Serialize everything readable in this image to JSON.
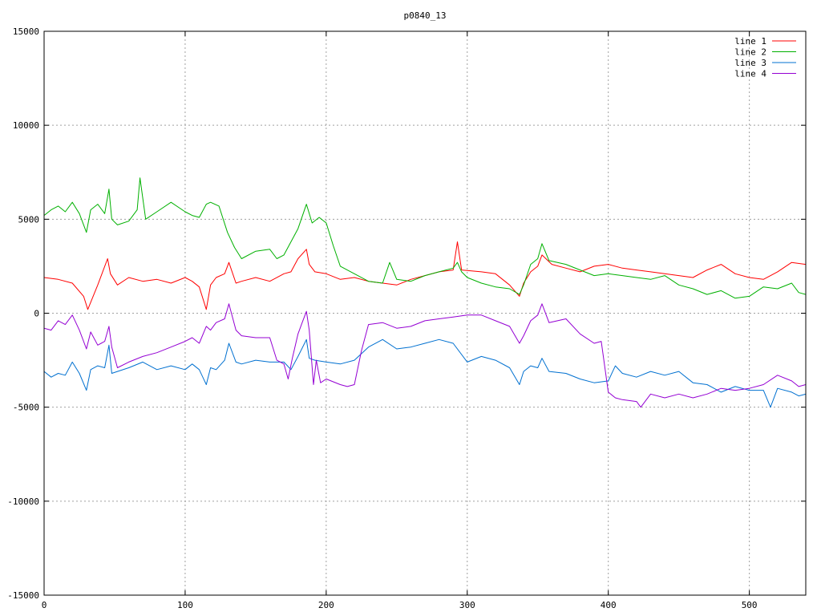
{
  "chart_data": {
    "type": "line",
    "title": "p0840_13",
    "xlabel": "",
    "ylabel": "",
    "xlim": [
      0,
      540
    ],
    "ylim": [
      -15000,
      15000
    ],
    "xticks": [
      0,
      100,
      200,
      300,
      400,
      500
    ],
    "yticks": [
      -15000,
      -10000,
      -5000,
      0,
      5000,
      10000,
      15000
    ],
    "grid": true,
    "legend": "top-right",
    "series": [
      {
        "name": "line 1",
        "color": "#ff0000",
        "x": [
          0,
          10,
          20,
          28,
          31,
          38,
          45,
          47,
          52,
          60,
          70,
          80,
          90,
          100,
          105,
          110,
          115,
          118,
          122,
          128,
          131,
          136,
          140,
          150,
          160,
          170,
          175,
          180,
          186,
          188,
          192,
          200,
          210,
          220,
          230,
          240,
          250,
          260,
          270,
          280,
          290,
          293,
          296,
          310,
          320,
          330,
          337,
          340,
          345,
          350,
          353,
          360,
          370,
          380,
          390,
          400,
          410,
          420,
          430,
          440,
          450,
          460,
          470,
          480,
          490,
          500,
          510,
          520,
          530,
          540
        ],
        "y": [
          1900,
          1800,
          1600,
          900,
          200,
          1500,
          2900,
          2100,
          1500,
          1900,
          1700,
          1800,
          1600,
          1900,
          1700,
          1400,
          200,
          1500,
          1900,
          2100,
          2700,
          1600,
          1700,
          1900,
          1700,
          2100,
          2200,
          2900,
          3400,
          2600,
          2200,
          2100,
          1800,
          1900,
          1700,
          1600,
          1500,
          1800,
          2000,
          2200,
          2300,
          3800,
          2300,
          2200,
          2100,
          1500,
          900,
          1600,
          2200,
          2500,
          3100,
          2600,
          2400,
          2200,
          2500,
          2600,
          2400,
          2300,
          2200,
          2100,
          2000,
          1900,
          2300,
          2600,
          2100,
          1900,
          1800,
          2200,
          2700,
          2600
        ]
      },
      {
        "name": "line 2",
        "color": "#00b000",
        "x": [
          0,
          5,
          10,
          15,
          20,
          25,
          30,
          33,
          38,
          43,
          46,
          48,
          52,
          60,
          66,
          68,
          72,
          80,
          90,
          100,
          105,
          110,
          115,
          118,
          124,
          130,
          135,
          140,
          150,
          160,
          165,
          170,
          180,
          186,
          190,
          195,
          200,
          205,
          210,
          220,
          230,
          240,
          245,
          250,
          260,
          270,
          280,
          290,
          293,
          296,
          300,
          310,
          320,
          330,
          337,
          340,
          345,
          350,
          353,
          358,
          370,
          380,
          390,
          400,
          410,
          420,
          430,
          440,
          450,
          460,
          470,
          480,
          490,
          500,
          510,
          520,
          530,
          535,
          540
        ],
        "y": [
          5200,
          5500,
          5700,
          5400,
          5900,
          5300,
          4300,
          5500,
          5800,
          5300,
          6600,
          5000,
          4700,
          4900,
          5500,
          7200,
          5000,
          5400,
          5900,
          5400,
          5200,
          5100,
          5800,
          5900,
          5700,
          4300,
          3500,
          2900,
          3300,
          3400,
          2900,
          3100,
          4500,
          5800,
          4800,
          5100,
          4800,
          3600,
          2500,
          2100,
          1700,
          1600,
          2700,
          1800,
          1700,
          2000,
          2200,
          2400,
          2700,
          2200,
          1900,
          1600,
          1400,
          1300,
          1000,
          1500,
          2600,
          2900,
          3700,
          2800,
          2600,
          2300,
          2000,
          2100,
          2000,
          1900,
          1800,
          2000,
          1500,
          1300,
          1000,
          1200,
          800,
          900,
          1400,
          1300,
          1600,
          1100,
          1000
        ]
      },
      {
        "name": "line 3",
        "color": "#0070d0",
        "x": [
          0,
          5,
          10,
          15,
          20,
          25,
          30,
          33,
          38,
          43,
          46,
          48,
          52,
          60,
          70,
          80,
          90,
          100,
          105,
          110,
          115,
          118,
          122,
          128,
          131,
          136,
          140,
          150,
          160,
          170,
          175,
          180,
          186,
          188,
          192,
          200,
          210,
          220,
          230,
          240,
          250,
          260,
          270,
          280,
          290,
          300,
          310,
          320,
          330,
          337,
          340,
          345,
          350,
          353,
          358,
          370,
          380,
          390,
          400,
          405,
          410,
          420,
          430,
          440,
          450,
          460,
          470,
          480,
          490,
          500,
          510,
          515,
          520,
          530,
          535,
          540
        ],
        "y": [
          -3100,
          -3400,
          -3200,
          -3300,
          -2600,
          -3200,
          -4100,
          -3000,
          -2800,
          -2900,
          -1700,
          -3200,
          -3100,
          -2900,
          -2600,
          -3000,
          -2800,
          -3000,
          -2700,
          -3000,
          -3800,
          -2900,
          -3000,
          -2500,
          -1600,
          -2600,
          -2700,
          -2500,
          -2600,
          -2600,
          -3000,
          -2300,
          -1400,
          -2400,
          -2500,
          -2600,
          -2700,
          -2500,
          -1800,
          -1400,
          -1900,
          -1800,
          -1600,
          -1400,
          -1600,
          -2600,
          -2300,
          -2500,
          -2900,
          -3800,
          -3100,
          -2800,
          -2900,
          -2400,
          -3100,
          -3200,
          -3500,
          -3700,
          -3600,
          -2800,
          -3200,
          -3400,
          -3100,
          -3300,
          -3100,
          -3700,
          -3800,
          -4200,
          -3900,
          -4100,
          -4100,
          -5000,
          -4000,
          -4200,
          -4400,
          -4300
        ]
      },
      {
        "name": "line 4",
        "color": "#9400d3",
        "x": [
          0,
          5,
          10,
          15,
          20,
          25,
          30,
          33,
          38,
          43,
          46,
          48,
          52,
          60,
          70,
          80,
          90,
          100,
          105,
          110,
          115,
          118,
          122,
          128,
          131,
          136,
          140,
          150,
          160,
          165,
          170,
          173,
          176,
          180,
          183,
          186,
          188,
          191,
          193,
          196,
          200,
          210,
          215,
          220,
          225,
          230,
          240,
          250,
          260,
          270,
          280,
          290,
          300,
          310,
          320,
          330,
          337,
          340,
          345,
          350,
          353,
          358,
          370,
          380,
          390,
          395,
          400,
          405,
          410,
          420,
          423,
          430,
          440,
          450,
          460,
          470,
          480,
          490,
          500,
          510,
          520,
          530,
          535,
          540
        ],
        "y": [
          -800,
          -900,
          -400,
          -600,
          -100,
          -900,
          -1900,
          -1000,
          -1700,
          -1500,
          -700,
          -1800,
          -2900,
          -2600,
          -2300,
          -2100,
          -1800,
          -1500,
          -1300,
          -1600,
          -700,
          -900,
          -500,
          -300,
          500,
          -900,
          -1200,
          -1300,
          -1300,
          -2500,
          -2700,
          -3500,
          -2400,
          -1100,
          -500,
          100,
          -900,
          -3800,
          -2500,
          -3700,
          -3500,
          -3800,
          -3900,
          -3800,
          -2000,
          -600,
          -500,
          -800,
          -700,
          -400,
          -300,
          -200,
          -100,
          -100,
          -400,
          -700,
          -1600,
          -1200,
          -400,
          -100,
          500,
          -500,
          -300,
          -1100,
          -1600,
          -1500,
          -4200,
          -4500,
          -4600,
          -4700,
          -5000,
          -4300,
          -4500,
          -4300,
          -4500,
          -4300,
          -4000,
          -4100,
          -4000,
          -3800,
          -3300,
          -3600,
          -3900,
          -3800
        ]
      }
    ]
  }
}
